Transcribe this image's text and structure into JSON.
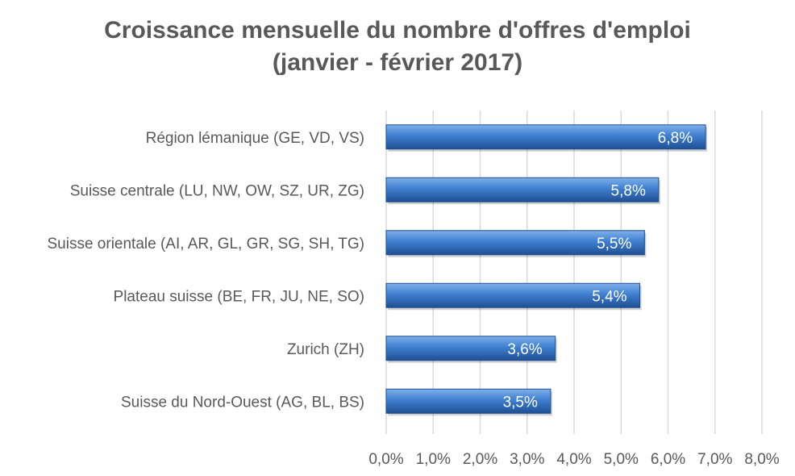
{
  "chart_data": {
    "type": "bar",
    "orientation": "horizontal",
    "title_line1": "Croissance mensuelle du nombre d'offres d'emploi",
    "title_line2": "(janvier - février 2017)",
    "categories": [
      "Région lémanique (GE, VD, VS)",
      "Suisse centrale (LU, NW, OW, SZ, UR, ZG)",
      "Suisse orientale (AI, AR, GL, GR, SG, SH, TG)",
      "Plateau suisse (BE, FR, JU, NE, SO)",
      "Zurich (ZH)",
      "Suisse du Nord-Ouest (AG, BL, BS)"
    ],
    "values": [
      6.8,
      5.8,
      5.5,
      5.4,
      3.6,
      3.5
    ],
    "value_labels": [
      "6,8%",
      "5,8%",
      "5,5%",
      "5,4%",
      "3,6%",
      "3,5%"
    ],
    "x_ticks": [
      0,
      1,
      2,
      3,
      4,
      5,
      6,
      7,
      8
    ],
    "x_tick_labels": [
      "0,0%",
      "1,0%",
      "2,0%",
      "3,0%",
      "4,0%",
      "5,0%",
      "6,0%",
      "7,0%",
      "8,0%"
    ],
    "xlim": [
      0,
      8
    ],
    "grid": true,
    "legend": "none",
    "colors": {
      "bar_light": "#7fb0ea",
      "bar_mid": "#3f7fd0",
      "bar_dark": "#1f4f93",
      "grid": "#d9d9d9",
      "text": "#595959",
      "data_label": "#ffffff"
    }
  }
}
